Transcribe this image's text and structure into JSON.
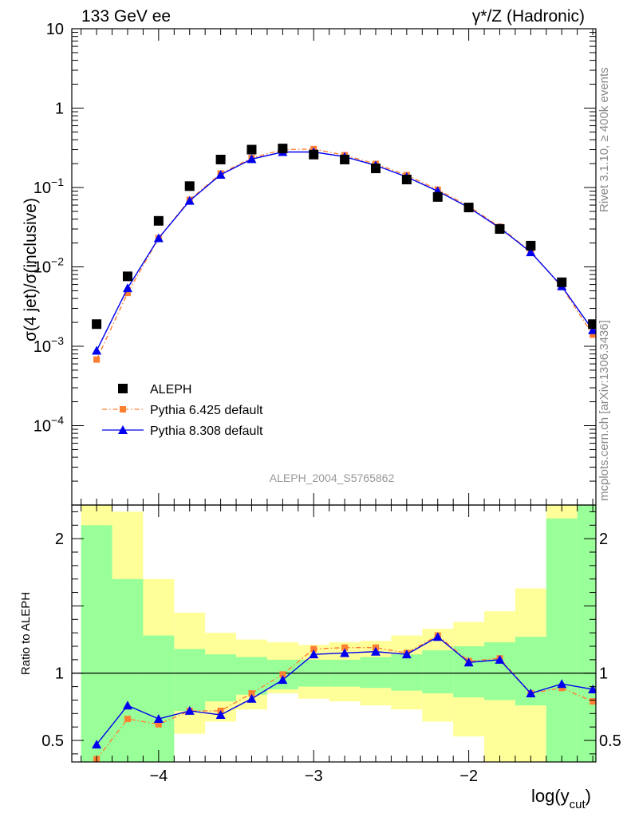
{
  "chart_data": [
    {
      "type": "scatter",
      "panel": "main",
      "title_left": "133 GeV ee",
      "title_right": "γ*/Z (Hadronic)",
      "ylabel": "σ(4 jet)/σ(inclusive)",
      "yscale": "log",
      "xlim": [
        -4.56,
        -1.18
      ],
      "ylim": [
        1e-05,
        10
      ],
      "y_ticks": [
        {
          "value": 10,
          "label": "10"
        },
        {
          "value": 1,
          "label": "1"
        },
        {
          "value": 0.1,
          "base": "10",
          "exp": "−1"
        },
        {
          "value": 0.01,
          "base": "10",
          "exp": "−2"
        },
        {
          "value": 0.001,
          "base": "10",
          "exp": "−3"
        },
        {
          "value": 0.0001,
          "base": "10",
          "exp": "−4"
        }
      ],
      "analysis_label": "ALEPH_2004_S5765862",
      "side_label_top": "Rivet 3.1.10, ≥ 400k events",
      "side_label_bottom": "mcplots.cern.ch [arXiv:1306.3436]",
      "legend_position": "lower-left",
      "series": [
        {
          "name": "ALEPH",
          "color": "#000000",
          "marker": "square",
          "x": [
            -4.4,
            -4.2,
            -4.0,
            -3.8,
            -3.6,
            -3.4,
            -3.2,
            -3.0,
            -2.8,
            -2.6,
            -2.4,
            -2.2,
            -2.0,
            -1.8,
            -1.6,
            -1.4,
            -1.2
          ],
          "y": [
            0.0019,
            0.0076,
            0.038,
            0.104,
            0.225,
            0.3,
            0.31,
            0.26,
            0.225,
            0.174,
            0.126,
            0.076,
            0.056,
            0.03,
            0.0185,
            0.0064,
            0.0019
          ]
        },
        {
          "name": "Pythia 6.425 default",
          "color": "#ff7f32",
          "marker": "square-small",
          "line": "dash-dot",
          "x": [
            -4.4,
            -4.2,
            -4.0,
            -3.8,
            -3.6,
            -3.4,
            -3.2,
            -3.0,
            -2.8,
            -2.6,
            -2.4,
            -2.2,
            -2.0,
            -1.8,
            -1.6,
            -1.4,
            -1.2
          ],
          "y": [
            0.00068,
            0.0047,
            0.023,
            0.07,
            0.15,
            0.235,
            0.3,
            0.305,
            0.255,
            0.198,
            0.143,
            0.094,
            0.058,
            0.032,
            0.0155,
            0.0056,
            0.0014
          ]
        },
        {
          "name": "Pythia 8.308 default",
          "color": "#0000ee",
          "marker": "triangle",
          "line": "solid",
          "x": [
            -4.4,
            -4.2,
            -4.0,
            -3.8,
            -3.6,
            -3.4,
            -3.2,
            -3.0,
            -2.8,
            -2.6,
            -2.4,
            -2.2,
            -2.0,
            -1.8,
            -1.6,
            -1.4,
            -1.2
          ],
          "y": [
            0.00088,
            0.0054,
            0.023,
            0.068,
            0.145,
            0.228,
            0.28,
            0.28,
            0.244,
            0.19,
            0.136,
            0.09,
            0.056,
            0.031,
            0.0153,
            0.0057,
            0.0016
          ]
        }
      ]
    },
    {
      "type": "line",
      "panel": "ratio",
      "ylabel": "Ratio to ALEPH",
      "xlabel": "log(y",
      "xlabel_sub": "cut",
      "xlabel_close": ")",
      "xlim": [
        -4.56,
        -1.18
      ],
      "ylim": [
        0.34,
        2.25
      ],
      "x_ticks": [
        {
          "value": -4,
          "label": "−4"
        },
        {
          "value": -3,
          "label": "−3"
        },
        {
          "value": -2,
          "label": "−2"
        }
      ],
      "y_ticks": [
        {
          "value": 2,
          "label": "2"
        },
        {
          "value": 1,
          "label": "1"
        },
        {
          "value": 0.5,
          "label": "0.5"
        }
      ],
      "bands": {
        "bin_edges": [
          -4.5,
          -4.3,
          -4.1,
          -3.9,
          -3.7,
          -3.5,
          -3.3,
          -3.1,
          -2.9,
          -2.7,
          -2.5,
          -2.3,
          -2.1,
          -1.9,
          -1.7,
          -1.5,
          -1.3,
          -1.15
        ],
        "green_color": "#99ff99",
        "yellow_color": "#ffff99",
        "green_lo": [
          0.34,
          0.34,
          0.34,
          0.72,
          0.79,
          0.84,
          0.88,
          0.9,
          0.9,
          0.89,
          0.87,
          0.85,
          0.82,
          0.8,
          0.76,
          0.34,
          0.34
        ],
        "green_hi": [
          2.1,
          1.7,
          1.28,
          1.18,
          1.14,
          1.12,
          1.1,
          1.1,
          1.1,
          1.12,
          1.14,
          1.17,
          1.2,
          1.23,
          1.27,
          2.15,
          2.25
        ],
        "yellow_lo": [
          0.34,
          0.34,
          0.34,
          0.55,
          0.64,
          0.73,
          0.85,
          0.81,
          0.79,
          0.76,
          0.73,
          0.64,
          0.53,
          0.34,
          0.34,
          0.34,
          0.34
        ],
        "yellow_hi": [
          2.25,
          2.2,
          1.7,
          1.45,
          1.3,
          1.25,
          1.23,
          1.21,
          1.23,
          1.24,
          1.28,
          1.33,
          1.38,
          1.46,
          1.63,
          2.25,
          2.25
        ]
      },
      "reference_line": 1,
      "series": [
        {
          "name": "Pythia 6.425 default",
          "color": "#ff7f32",
          "marker": "square-small",
          "line": "dash-dot",
          "x": [
            -4.4,
            -4.2,
            -4.0,
            -3.8,
            -3.6,
            -3.4,
            -3.2,
            -3.0,
            -2.8,
            -2.6,
            -2.4,
            -2.2,
            -2.0,
            -1.8,
            -1.6,
            -1.4,
            -1.2
          ],
          "y": [
            0.36,
            0.66,
            0.62,
            0.72,
            0.72,
            0.85,
            0.99,
            1.18,
            1.19,
            1.19,
            1.15,
            1.28,
            1.09,
            1.11,
            0.85,
            0.89,
            0.79
          ]
        },
        {
          "name": "Pythia 8.308 default",
          "color": "#0000ee",
          "marker": "triangle",
          "line": "solid",
          "x": [
            -4.4,
            -4.2,
            -4.0,
            -3.8,
            -3.6,
            -3.4,
            -3.2,
            -3.0,
            -2.8,
            -2.6,
            -2.4,
            -2.2,
            -2.0,
            -1.8,
            -1.6,
            -1.4,
            -1.2
          ],
          "y": [
            0.47,
            0.76,
            0.66,
            0.72,
            0.69,
            0.81,
            0.95,
            1.14,
            1.15,
            1.16,
            1.14,
            1.27,
            1.08,
            1.1,
            0.85,
            0.92,
            0.88
          ]
        }
      ]
    }
  ]
}
